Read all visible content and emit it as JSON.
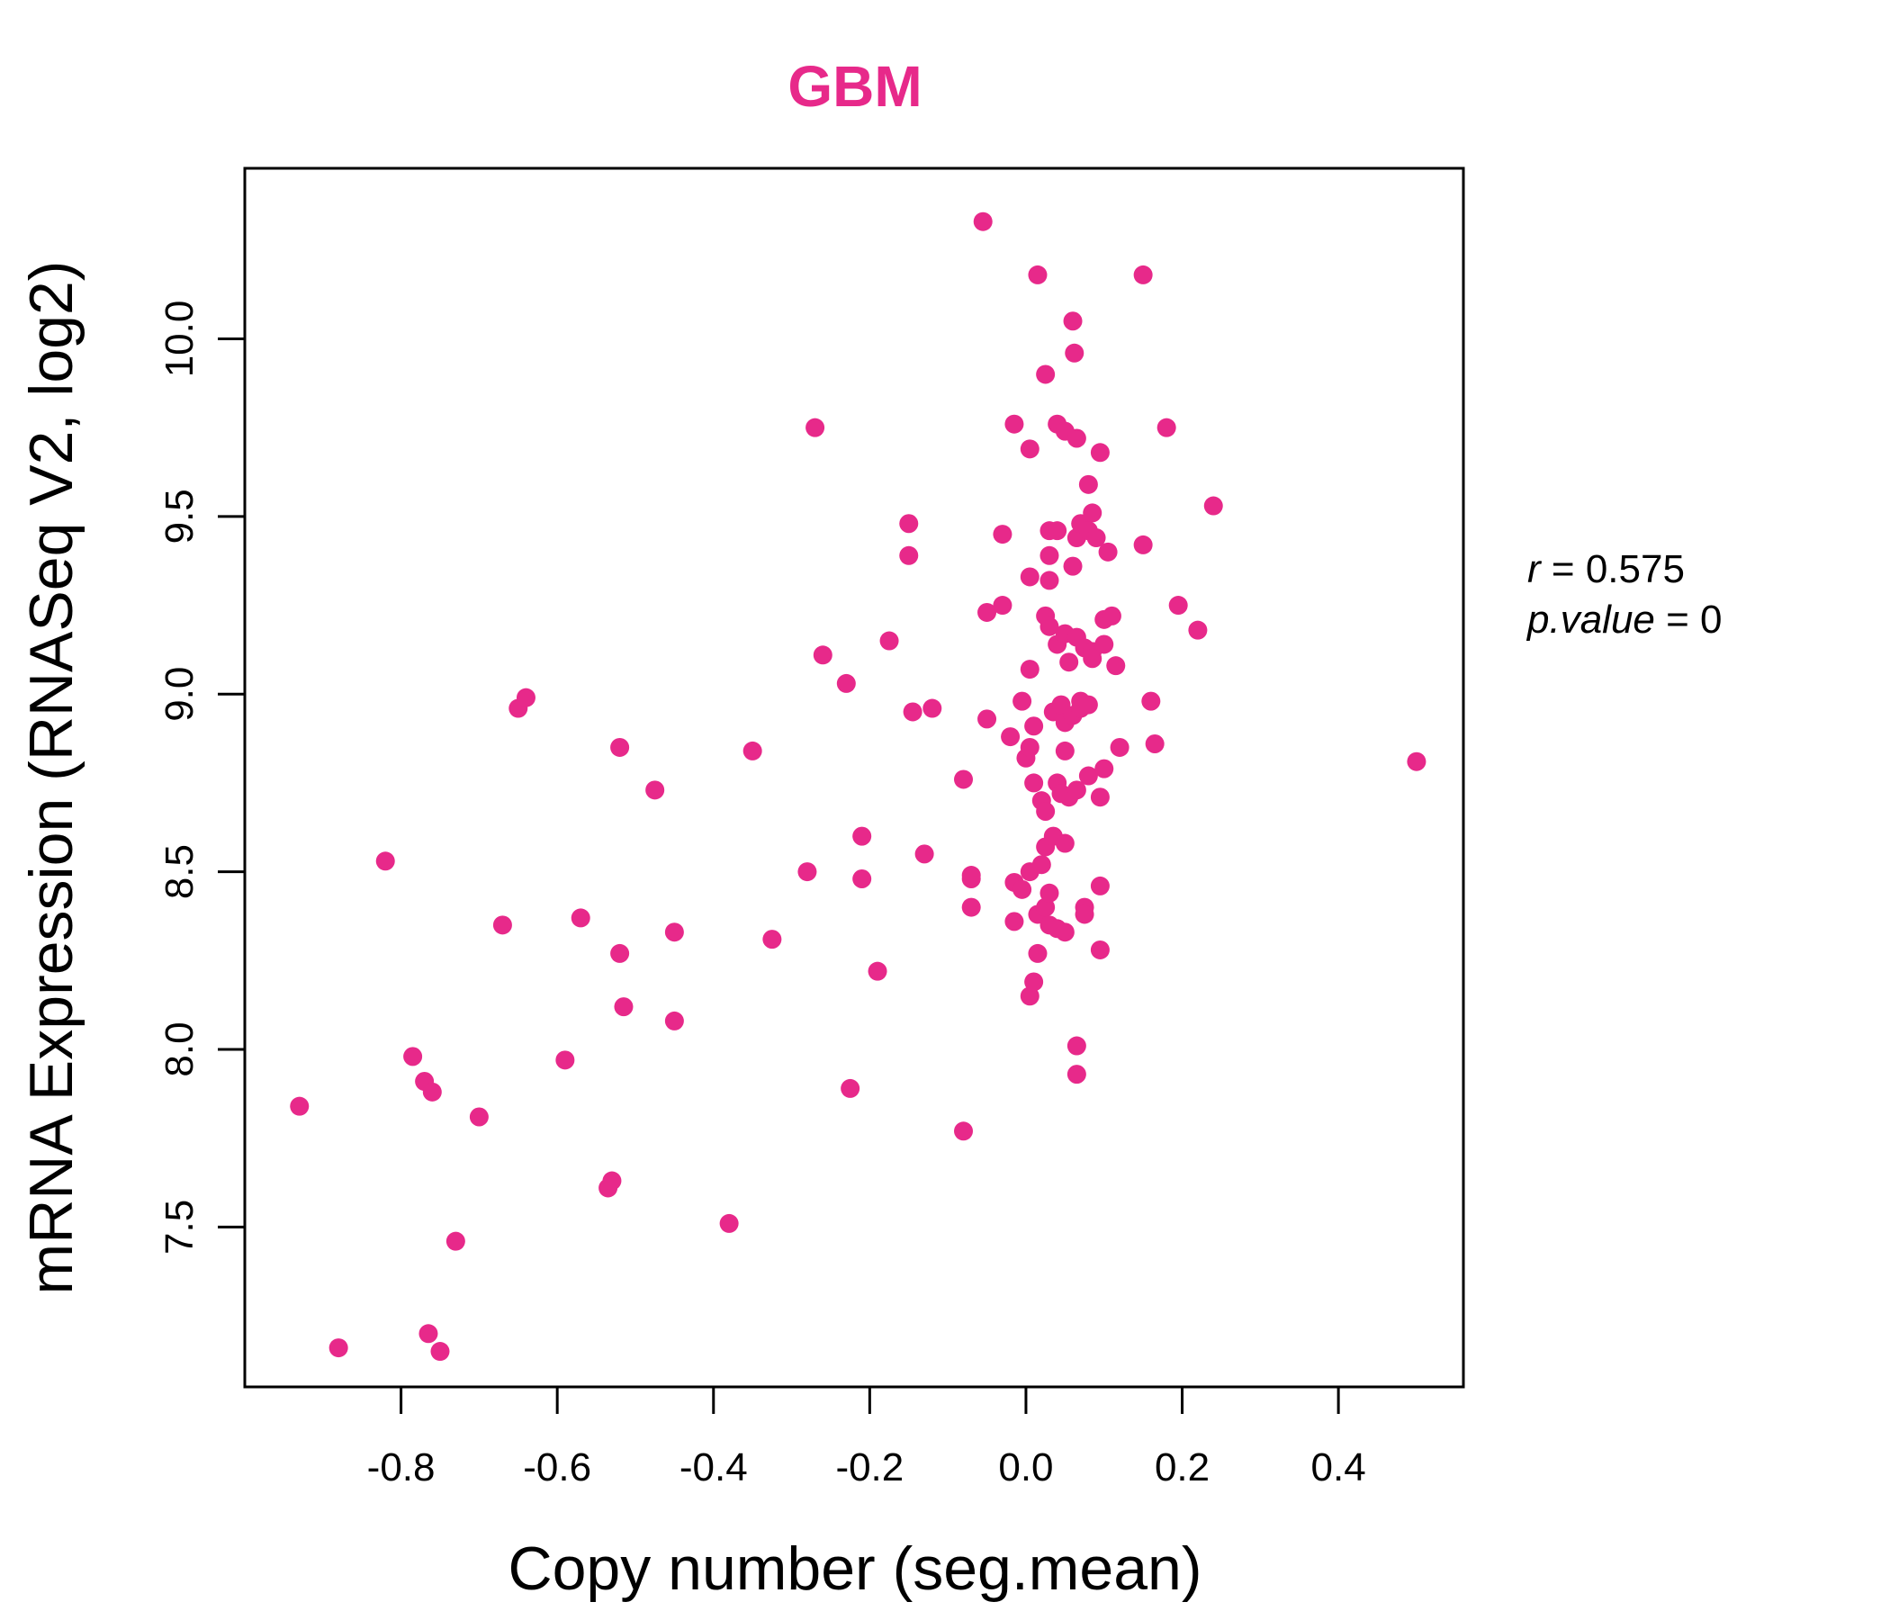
{
  "chart_data": {
    "type": "scatter",
    "title": "GBM",
    "xlabel": "Copy number (seg.mean)",
    "ylabel": "mRNA Expression (RNASeq V2, log2)",
    "xlim": [
      -1.0,
      0.56
    ],
    "ylim": [
      7.05,
      10.48
    ],
    "x_ticks": [
      -0.8,
      -0.6,
      -0.4,
      -0.2,
      0.0,
      0.2,
      0.4
    ],
    "x_tick_labels": [
      "-0.8",
      "-0.6",
      "-0.4",
      "-0.2",
      "0.0",
      "0.2",
      "0.4"
    ],
    "y_ticks": [
      7.5,
      8.0,
      8.5,
      9.0,
      9.5,
      10.0
    ],
    "y_tick_labels": [
      "7.5",
      "8.0",
      "8.5",
      "9.0",
      "9.5",
      "10.0"
    ],
    "grid": false,
    "colors": {
      "points": "#e7298a",
      "title": "#e7298a",
      "axis": "#000000"
    },
    "stats": {
      "r_label": "r",
      "r_value": "0.575",
      "p_label": "p.value",
      "p_value": "0"
    },
    "points": [
      [
        -0.93,
        7.84
      ],
      [
        -0.88,
        7.16
      ],
      [
        -0.82,
        8.53
      ],
      [
        -0.785,
        7.98
      ],
      [
        -0.77,
        7.91
      ],
      [
        -0.76,
        7.88
      ],
      [
        -0.765,
        7.2
      ],
      [
        -0.75,
        7.15
      ],
      [
        -0.73,
        7.46
      ],
      [
        -0.7,
        7.81
      ],
      [
        -0.67,
        8.35
      ],
      [
        -0.65,
        8.96
      ],
      [
        -0.64,
        8.99
      ],
      [
        -0.59,
        7.97
      ],
      [
        -0.57,
        8.37
      ],
      [
        -0.52,
        8.85
      ],
      [
        -0.52,
        8.27
      ],
      [
        -0.515,
        8.12
      ],
      [
        -0.535,
        7.61
      ],
      [
        -0.53,
        7.63
      ],
      [
        -0.475,
        8.73
      ],
      [
        -0.45,
        8.33
      ],
      [
        -0.45,
        8.08
      ],
      [
        -0.38,
        7.51
      ],
      [
        -0.35,
        8.84
      ],
      [
        -0.325,
        8.31
      ],
      [
        -0.28,
        8.5
      ],
      [
        -0.27,
        9.75
      ],
      [
        -0.26,
        9.11
      ],
      [
        -0.23,
        9.03
      ],
      [
        -0.225,
        7.89
      ],
      [
        -0.21,
        8.6
      ],
      [
        -0.21,
        8.48
      ],
      [
        -0.19,
        8.22
      ],
      [
        -0.175,
        9.15
      ],
      [
        -0.15,
        9.48
      ],
      [
        -0.15,
        9.39
      ],
      [
        -0.145,
        8.95
      ],
      [
        -0.13,
        8.55
      ],
      [
        -0.12,
        8.96
      ],
      [
        -0.08,
        8.76
      ],
      [
        -0.08,
        7.77
      ],
      [
        -0.07,
        8.49
      ],
      [
        -0.07,
        8.48
      ],
      [
        -0.07,
        8.4
      ],
      [
        -0.055,
        10.33
      ],
      [
        -0.05,
        9.23
      ],
      [
        -0.05,
        8.93
      ],
      [
        -0.03,
        9.25
      ],
      [
        -0.03,
        9.45
      ],
      [
        -0.02,
        8.88
      ],
      [
        -0.015,
        9.76
      ],
      [
        -0.015,
        8.47
      ],
      [
        -0.015,
        8.36
      ],
      [
        -0.005,
        8.45
      ],
      [
        -0.005,
        8.98
      ],
      [
        0.0,
        8.82
      ],
      [
        0.005,
        8.85
      ],
      [
        0.005,
        9.69
      ],
      [
        0.005,
        9.33
      ],
      [
        0.005,
        9.07
      ],
      [
        0.005,
        8.5
      ],
      [
        0.005,
        8.15
      ],
      [
        0.01,
        8.75
      ],
      [
        0.01,
        8.91
      ],
      [
        0.01,
        8.19
      ],
      [
        0.015,
        10.18
      ],
      [
        0.015,
        8.27
      ],
      [
        0.015,
        8.38
      ],
      [
        0.02,
        8.7
      ],
      [
        0.02,
        8.52
      ],
      [
        0.025,
        9.9
      ],
      [
        0.025,
        9.22
      ],
      [
        0.025,
        8.57
      ],
      [
        0.025,
        8.67
      ],
      [
        0.025,
        8.4
      ],
      [
        0.03,
        9.32
      ],
      [
        0.03,
        9.19
      ],
      [
        0.03,
        9.39
      ],
      [
        0.03,
        9.46
      ],
      [
        0.03,
        8.44
      ],
      [
        0.03,
        8.35
      ],
      [
        0.035,
        8.95
      ],
      [
        0.035,
        8.6
      ],
      [
        0.04,
        9.76
      ],
      [
        0.04,
        9.46
      ],
      [
        0.04,
        9.14
      ],
      [
        0.04,
        8.75
      ],
      [
        0.04,
        8.34
      ],
      [
        0.045,
        8.97
      ],
      [
        0.045,
        8.72
      ],
      [
        0.05,
        9.74
      ],
      [
        0.05,
        9.17
      ],
      [
        0.05,
        8.92
      ],
      [
        0.05,
        8.84
      ],
      [
        0.05,
        8.58
      ],
      [
        0.05,
        8.33
      ],
      [
        0.055,
        9.09
      ],
      [
        0.055,
        8.71
      ],
      [
        0.06,
        10.05
      ],
      [
        0.06,
        9.36
      ],
      [
        0.06,
        8.94
      ],
      [
        0.062,
        9.96
      ],
      [
        0.065,
        9.72
      ],
      [
        0.065,
        9.44
      ],
      [
        0.065,
        9.16
      ],
      [
        0.065,
        8.73
      ],
      [
        0.065,
        8.01
      ],
      [
        0.065,
        7.93
      ],
      [
        0.07,
        9.48
      ],
      [
        0.07,
        8.98
      ],
      [
        0.07,
        8.96
      ],
      [
        0.075,
        9.13
      ],
      [
        0.075,
        8.4
      ],
      [
        0.075,
        8.38
      ],
      [
        0.08,
        9.59
      ],
      [
        0.08,
        9.46
      ],
      [
        0.08,
        8.97
      ],
      [
        0.08,
        8.77
      ],
      [
        0.085,
        9.51
      ],
      [
        0.085,
        9.12
      ],
      [
        0.085,
        9.1
      ],
      [
        0.09,
        9.44
      ],
      [
        0.095,
        9.68
      ],
      [
        0.095,
        8.71
      ],
      [
        0.095,
        8.46
      ],
      [
        0.095,
        8.28
      ],
      [
        0.1,
        9.21
      ],
      [
        0.1,
        9.14
      ],
      [
        0.1,
        8.79
      ],
      [
        0.105,
        9.4
      ],
      [
        0.11,
        9.22
      ],
      [
        0.115,
        9.08
      ],
      [
        0.12,
        8.85
      ],
      [
        0.15,
        10.18
      ],
      [
        0.15,
        9.42
      ],
      [
        0.16,
        8.98
      ],
      [
        0.165,
        8.86
      ],
      [
        0.18,
        9.75
      ],
      [
        0.195,
        9.25
      ],
      [
        0.22,
        9.18
      ],
      [
        0.24,
        9.53
      ],
      [
        0.5,
        8.81
      ]
    ]
  }
}
